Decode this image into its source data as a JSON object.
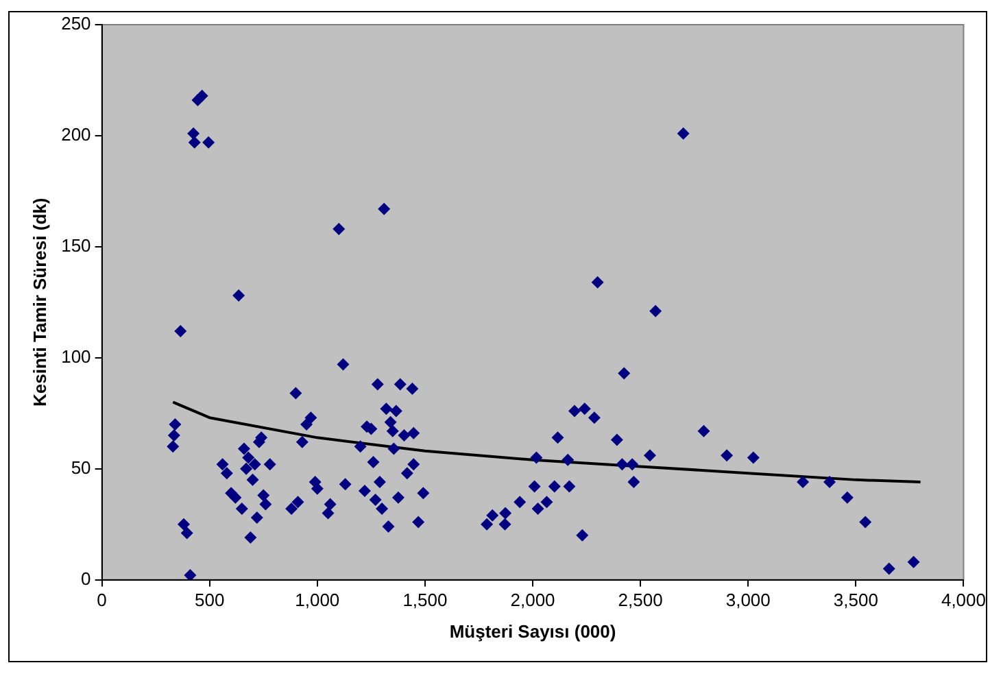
{
  "chart_data": {
    "type": "scatter",
    "xlabel": "Müşteri Sayısı (000)",
    "ylabel": "Kesinti Tamir Süresi (dk)",
    "xlim": [
      0,
      4000
    ],
    "xticks": [
      0,
      {
        "value": 500,
        "label": "500"
      },
      {
        "value": 1000,
        "label": "1,000"
      },
      {
        "value": 1500,
        "label": "1,500"
      },
      {
        "value": 2000,
        "label": "2,000"
      },
      {
        "value": 2500,
        "label": "2,500"
      },
      {
        "value": 3000,
        "label": "3,000"
      },
      {
        "value": 3500,
        "label": "3,500"
      },
      {
        "value": 4000,
        "label": "4,000"
      }
    ],
    "ylim": [
      0,
      250
    ],
    "yticks": [
      0,
      50,
      100,
      150,
      200,
      250
    ],
    "grid": false,
    "legend": false,
    "series": [
      {
        "type": "scatter",
        "color": "#000080",
        "marker": "diamond",
        "x": [
          330,
          335,
          340,
          365,
          380,
          395,
          410,
          425,
          430,
          445,
          465,
          495,
          560,
          580,
          600,
          620,
          635,
          650,
          660,
          670,
          680,
          690,
          700,
          710,
          720,
          730,
          740,
          750,
          760,
          780,
          880,
          900,
          910,
          930,
          950,
          970,
          990,
          1000,
          1050,
          1060,
          1100,
          1120,
          1130,
          1200,
          1220,
          1230,
          1250,
          1260,
          1270,
          1280,
          1290,
          1300,
          1310,
          1320,
          1330,
          1340,
          1350,
          1355,
          1366,
          1376,
          1385,
          1403,
          1417,
          1441,
          1447,
          1447,
          1469,
          1492,
          1787,
          1813,
          1873,
          1871,
          1940,
          2008,
          2017,
          2024,
          2065,
          2101,
          2116,
          2163,
          2170,
          2194,
          2230,
          2241,
          2286,
          2301,
          2391,
          2415,
          2424,
          2462,
          2469,
          2544,
          2570,
          2699,
          2794,
          2901,
          3024,
          3254,
          3378,
          3460,
          3544,
          3654,
          3768
        ],
        "values": [
          60,
          65,
          70,
          112,
          25,
          21,
          2,
          201,
          197,
          216,
          218,
          197,
          52,
          48,
          39,
          37,
          128,
          32,
          59,
          50,
          55,
          19,
          45,
          52,
          28,
          62,
          64,
          38,
          34,
          52,
          32,
          84,
          35,
          62,
          70,
          73,
          44,
          41,
          30,
          34,
          158,
          97,
          43,
          60,
          40,
          69,
          68,
          53,
          36,
          88,
          44,
          32,
          167,
          77,
          24,
          71,
          67,
          59,
          76,
          37,
          88,
          65,
          48,
          86,
          66,
          52,
          26,
          39,
          25,
          29,
          30,
          25,
          35,
          42,
          55,
          32,
          35,
          42,
          64,
          54,
          42,
          76,
          20,
          77,
          73,
          134,
          63,
          52,
          93,
          52,
          44,
          56,
          121,
          201,
          67,
          56,
          55,
          44,
          44,
          37,
          26,
          5,
          8
        ]
      },
      {
        "type": "line",
        "color": "#000000",
        "marker": "none",
        "line_style": "solid",
        "x": [
          330,
          500,
          1000,
          1500,
          2000,
          2500,
          3000,
          3500,
          3800
        ],
        "values": [
          80,
          73,
          64,
          58,
          54,
          51,
          48,
          45,
          44
        ]
      }
    ]
  }
}
